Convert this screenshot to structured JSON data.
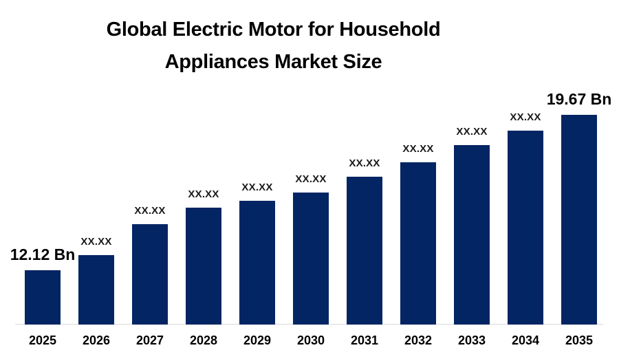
{
  "chart_data": {
    "type": "bar",
    "title": "Global Electric Motor for Household Appliances Market Size",
    "title_lines": [
      "Global Electric Motor for Household",
      "Appliances Market Size"
    ],
    "categories": [
      "2025",
      "2026",
      "2027",
      "2028",
      "2029",
      "2030",
      "2031",
      "2032",
      "2033",
      "2034",
      "2035"
    ],
    "values": [
      12.12,
      12.87,
      14.37,
      15.17,
      15.5,
      15.9,
      16.67,
      17.37,
      18.2,
      18.9,
      19.67
    ],
    "value_labels": [
      "12.12 Bn",
      "XX.XX",
      "XX.XX",
      "XX.XX",
      "XX.XX",
      "XX.XX",
      "XX.XX",
      "XX.XX",
      "XX.XX",
      "XX.XX",
      "19.67 Bn"
    ],
    "unit": "Bn",
    "xlabel": "",
    "ylabel": "",
    "ylim": [
      9.5,
      21
    ],
    "grid": false,
    "legend": false,
    "colors": {
      "bar": "#042563",
      "axis_line": "#d9d9d9",
      "title": "#000000",
      "labels": "#000000"
    }
  }
}
